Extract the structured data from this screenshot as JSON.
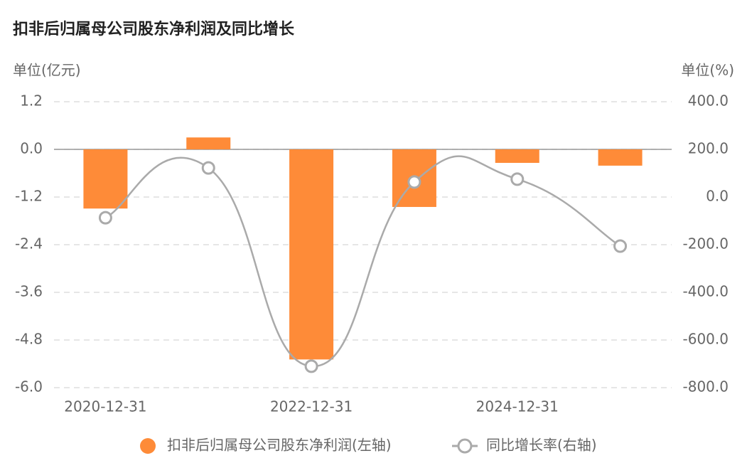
{
  "chart_data": {
    "type": "bar",
    "title": "扣非后归属母公司股东净利润及同比增长",
    "y_label": "单位(亿元)",
    "y2_label": "单位(%)",
    "categories": [
      "2020-12-31",
      null,
      "2022-12-31",
      null,
      "2024-12-31",
      null
    ],
    "series": [
      {
        "name": "扣非后归属母公司股东净利润(左轴)",
        "type": "bar",
        "color": "#fe8b38",
        "values": [
          -1.49,
          0.3,
          -5.29,
          -1.45,
          -0.34,
          -0.41
        ]
      },
      {
        "name": "同比增长率(右轴)",
        "type": "line",
        "axis": "y2",
        "color": "#aaaaaa",
        "values": [
          -87,
          122,
          -710,
          63,
          75,
          -206
        ]
      }
    ],
    "ylim": [
      -6,
      1.2
    ],
    "yticks": [
      1.2,
      {
        "value": 0,
        "label": "0.0"
      },
      -1.2,
      -2.4,
      -3.6,
      -4.8,
      {
        "value": -6,
        "label": "-6.0"
      }
    ],
    "y2lim": [
      -800,
      400
    ],
    "y2ticks": [
      {
        "value": 400,
        "label": "400.0"
      },
      {
        "value": 200,
        "label": "200.0"
      },
      {
        "value": 0,
        "label": "0.0"
      },
      {
        "value": -200,
        "label": "-200.0"
      },
      {
        "value": -400,
        "label": "-400.0"
      },
      {
        "value": -600,
        "label": "-600.0"
      },
      {
        "value": -800,
        "label": "-800.0"
      }
    ],
    "grid": true,
    "legend": "bottom"
  }
}
